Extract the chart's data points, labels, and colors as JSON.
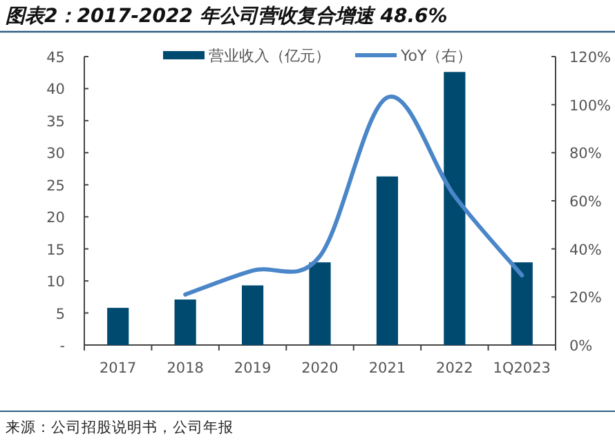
{
  "chart_data": {
    "type": "bar",
    "title": "图表2：2017-2022 年公司营收复合增速 48.6%",
    "categories": [
      "2017",
      "2018",
      "2019",
      "2020",
      "2021",
      "2022",
      "1Q2023"
    ],
    "series": [
      {
        "name": "营业收入（亿元）",
        "color": "#004a70",
        "values": [
          5.8,
          7.1,
          9.3,
          12.9,
          26.3,
          42.6,
          12.9
        ]
      },
      {
        "name": "YoY（右）",
        "type": "line",
        "axis": "y2",
        "color": "#4a86c8",
        "values": [
          null,
          21,
          31,
          37,
          103,
          62,
          29
        ]
      }
    ],
    "ylim": [
      0,
      45
    ],
    "yticks": [
      {
        "value": 0,
        "label": "-"
      },
      5,
      10,
      15,
      20,
      25,
      30,
      35,
      40,
      45
    ],
    "y2lim": [
      0,
      120
    ],
    "y2ticks": [
      {
        "value": 0,
        "label": "0%"
      },
      {
        "value": 20,
        "label": "20%"
      },
      {
        "value": 40,
        "label": "40%"
      },
      {
        "value": 60,
        "label": "60%"
      },
      {
        "value": 80,
        "label": "80%"
      },
      {
        "value": 100,
        "label": "100%"
      },
      {
        "value": 120,
        "label": "120%"
      }
    ],
    "legend": "top",
    "marker": "none",
    "annotations": [
      "来源：公司招股说明书，公司年报"
    ]
  }
}
